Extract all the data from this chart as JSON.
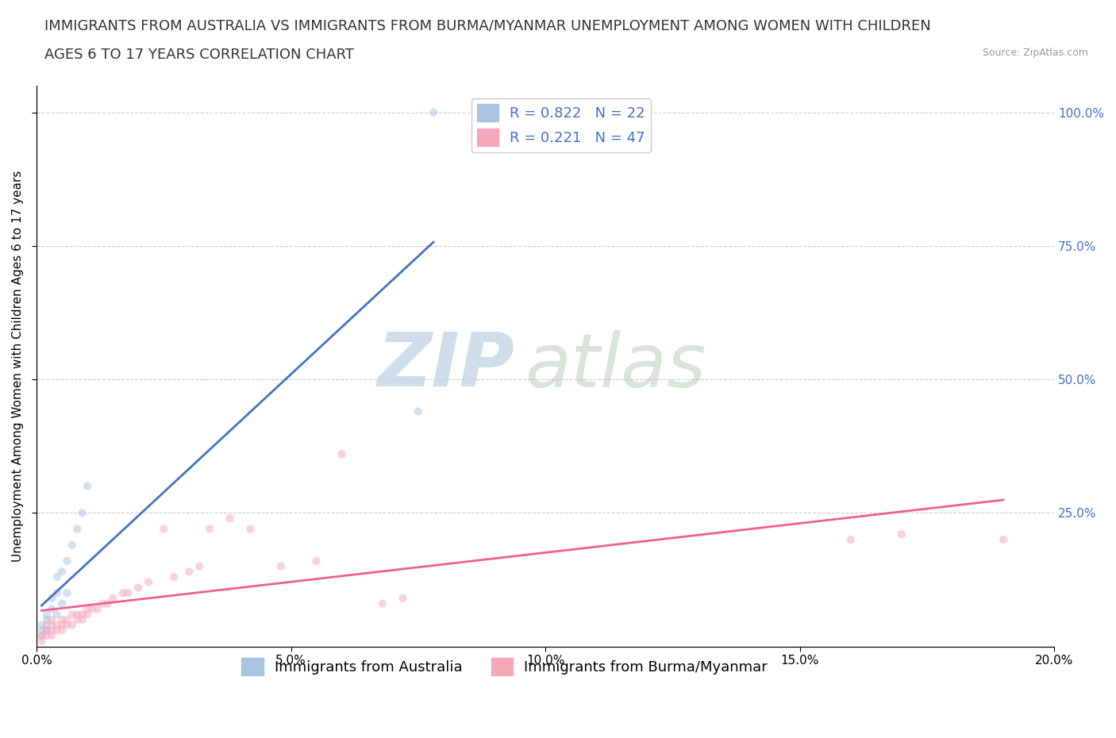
{
  "title_line1": "IMMIGRANTS FROM AUSTRALIA VS IMMIGRANTS FROM BURMA/MYANMAR UNEMPLOYMENT AMONG WOMEN WITH CHILDREN",
  "title_line2": "AGES 6 TO 17 YEARS CORRELATION CHART",
  "source_text": "Source: ZipAtlas.com",
  "ylabel": "Unemployment Among Women with Children Ages 6 to 17 years",
  "xlim": [
    0.0,
    0.2
  ],
  "ylim": [
    0.0,
    1.05
  ],
  "xtick_labels": [
    "0.0%",
    "5.0%",
    "10.0%",
    "15.0%",
    "20.0%"
  ],
  "xtick_values": [
    0.0,
    0.05,
    0.1,
    0.15,
    0.2
  ],
  "ytick_labels": [
    "25.0%",
    "50.0%",
    "75.0%",
    "100.0%"
  ],
  "ytick_values": [
    0.25,
    0.5,
    0.75,
    1.0
  ],
  "color_australia": "#a8c4e0",
  "color_burma": "#f4a7b9",
  "line_color_australia": "#4472c4",
  "line_color_burma": "#f06090",
  "R_australia": 0.822,
  "N_australia": 22,
  "R_burma": 0.221,
  "N_burma": 47,
  "australia_x": [
    0.001,
    0.001,
    0.001,
    0.002,
    0.002,
    0.002,
    0.003,
    0.003,
    0.003,
    0.004,
    0.004,
    0.004,
    0.005,
    0.005,
    0.006,
    0.006,
    0.007,
    0.008,
    0.009,
    0.01,
    0.075,
    0.078
  ],
  "australia_y": [
    0.02,
    0.03,
    0.04,
    0.03,
    0.05,
    0.06,
    0.04,
    0.07,
    0.09,
    0.06,
    0.1,
    0.13,
    0.08,
    0.14,
    0.1,
    0.16,
    0.19,
    0.22,
    0.25,
    0.3,
    0.44,
    1.0
  ],
  "burma_x": [
    0.001,
    0.001,
    0.002,
    0.002,
    0.002,
    0.003,
    0.003,
    0.003,
    0.004,
    0.004,
    0.005,
    0.005,
    0.005,
    0.006,
    0.006,
    0.007,
    0.007,
    0.008,
    0.008,
    0.009,
    0.009,
    0.01,
    0.01,
    0.011,
    0.012,
    0.013,
    0.014,
    0.015,
    0.017,
    0.018,
    0.02,
    0.022,
    0.025,
    0.027,
    0.03,
    0.032,
    0.034,
    0.038,
    0.042,
    0.048,
    0.055,
    0.06,
    0.068,
    0.072,
    0.16,
    0.17,
    0.19
  ],
  "burma_y": [
    0.01,
    0.02,
    0.02,
    0.03,
    0.04,
    0.02,
    0.03,
    0.05,
    0.03,
    0.04,
    0.03,
    0.04,
    0.05,
    0.04,
    0.05,
    0.04,
    0.06,
    0.05,
    0.06,
    0.05,
    0.06,
    0.06,
    0.07,
    0.07,
    0.07,
    0.08,
    0.08,
    0.09,
    0.1,
    0.1,
    0.11,
    0.12,
    0.22,
    0.13,
    0.14,
    0.15,
    0.22,
    0.24,
    0.22,
    0.15,
    0.16,
    0.36,
    0.08,
    0.09,
    0.2,
    0.21,
    0.2
  ],
  "watermark_zip": "ZIP",
  "watermark_atlas": "atlas",
  "background_color": "#ffffff",
  "grid_color": "#c8c8c8",
  "legend_R_color": "#4472c4",
  "legend_fontsize": 13,
  "title_fontsize": 13,
  "axis_label_fontsize": 11,
  "tick_fontsize": 11,
  "scatter_alpha": 0.5,
  "scatter_size": 55
}
